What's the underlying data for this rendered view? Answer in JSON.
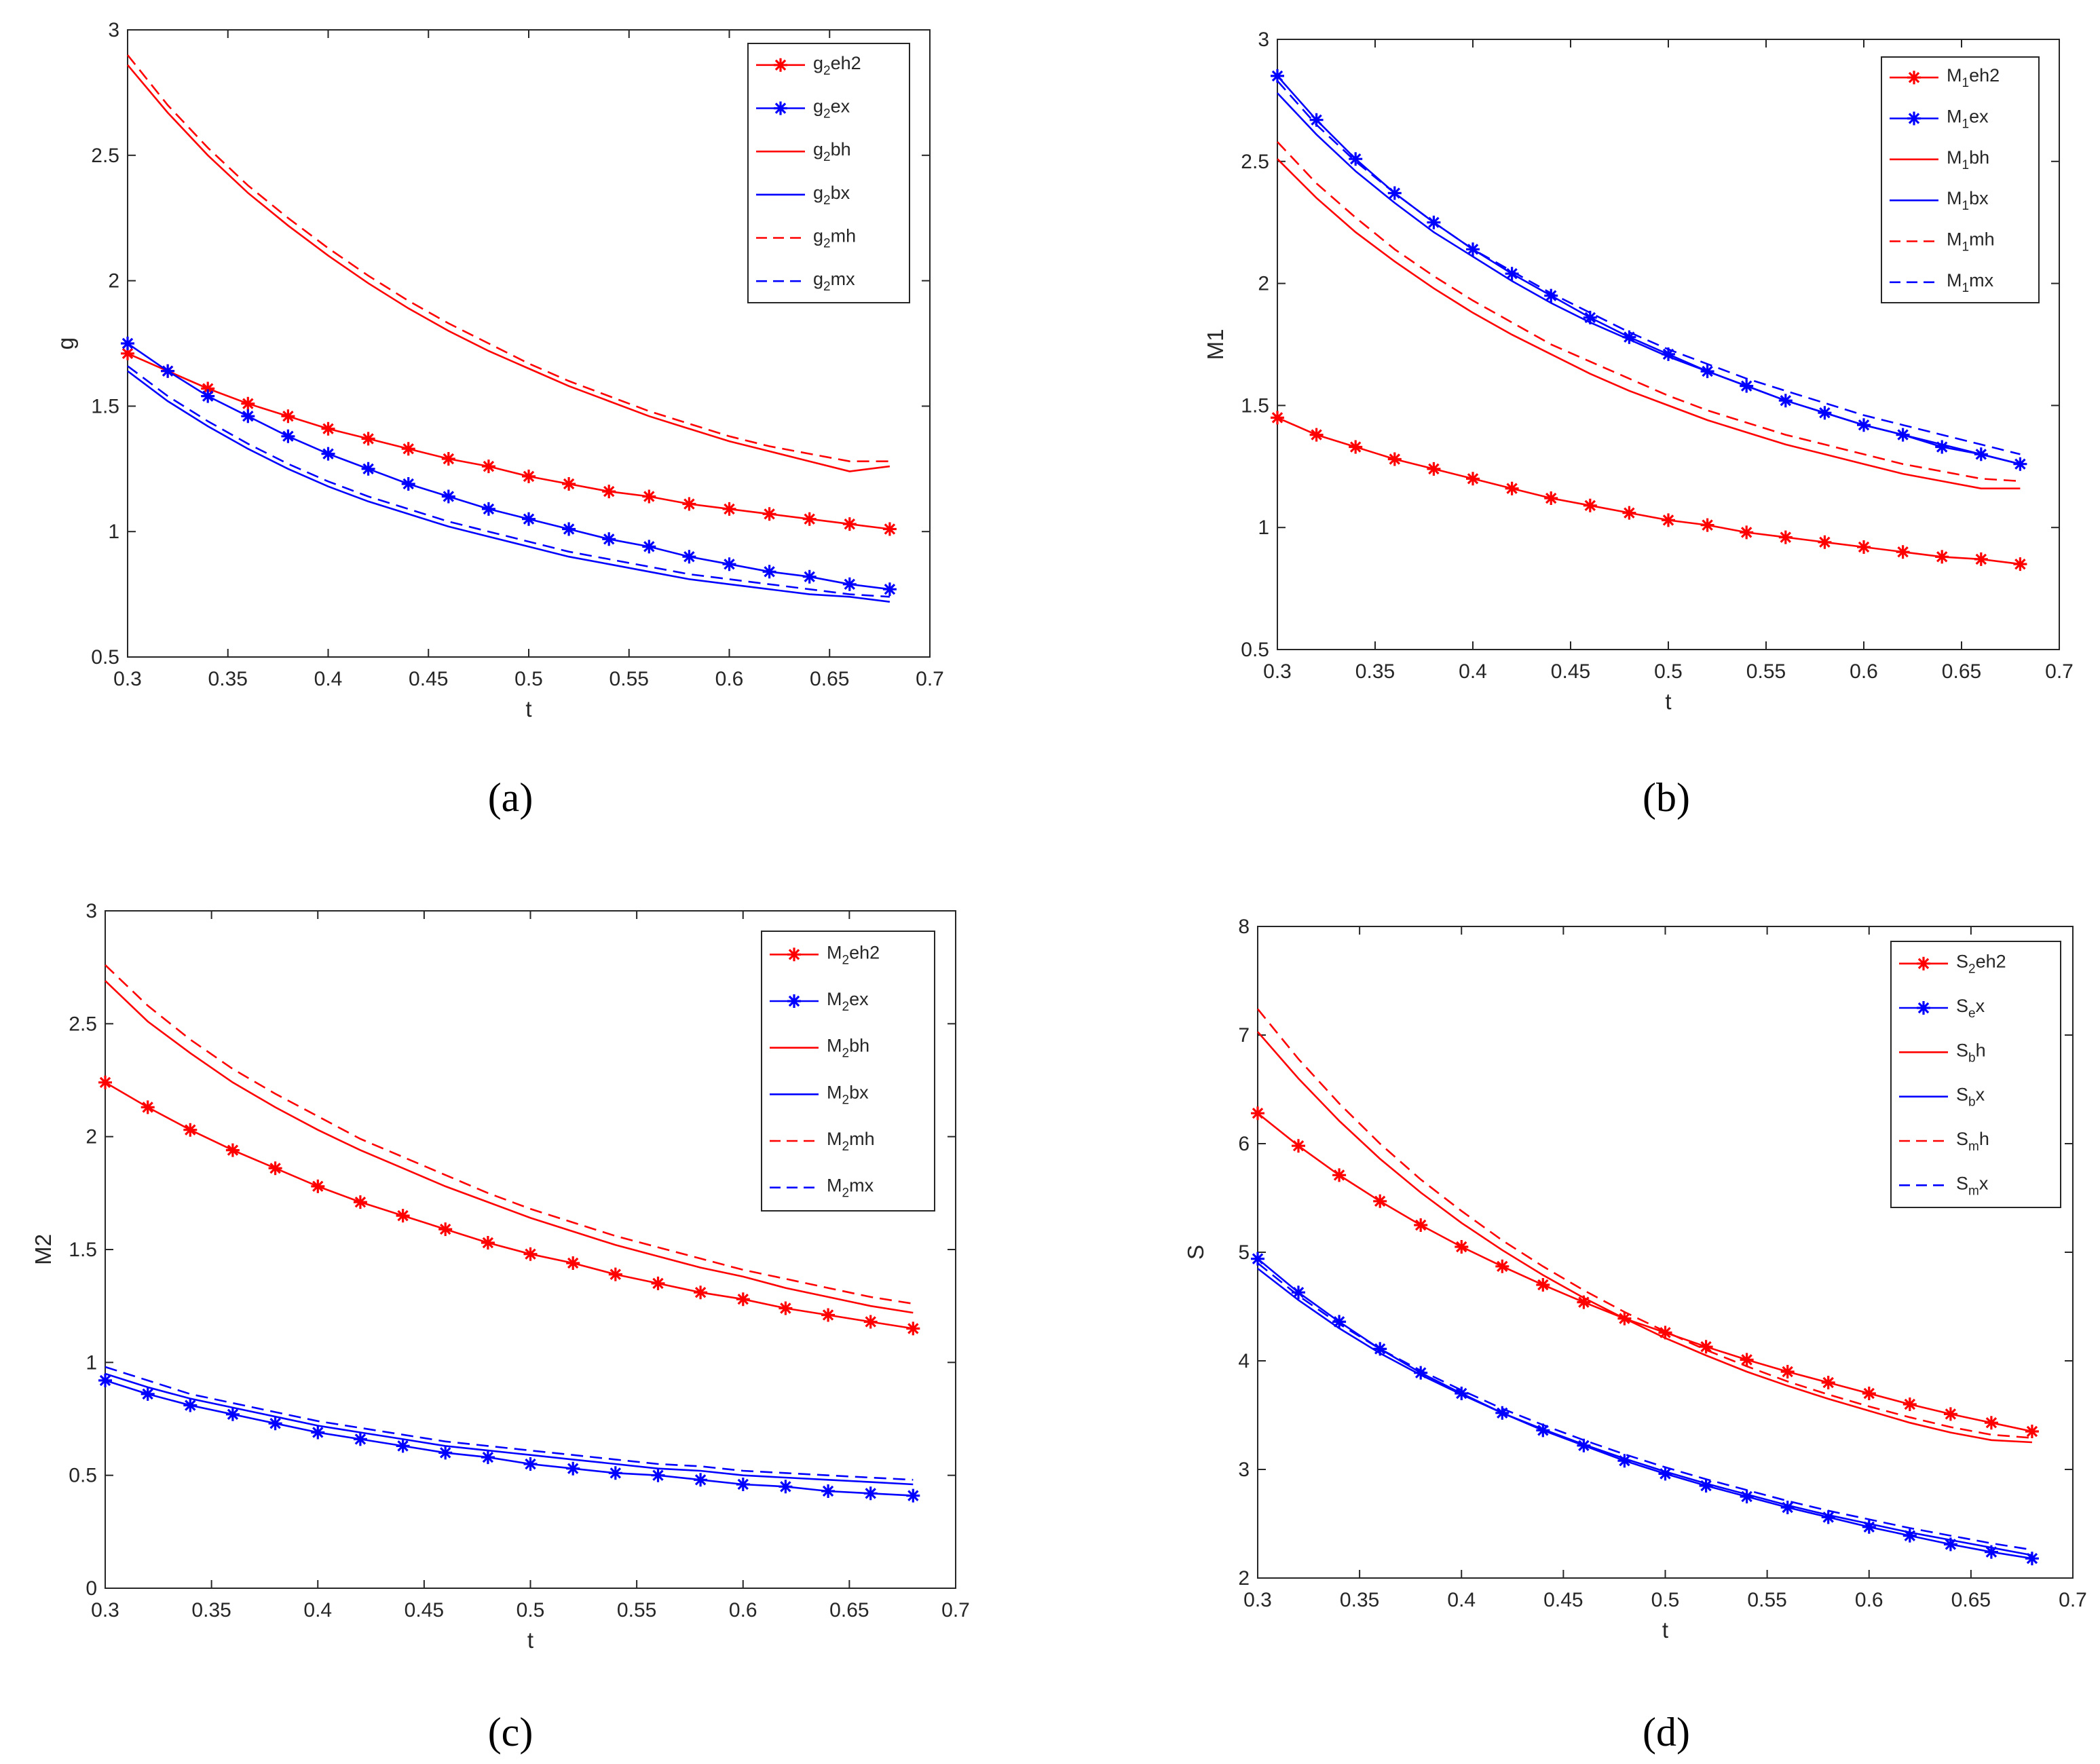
{
  "colors": {
    "red": "#ff0000",
    "blue": "#0000ff",
    "axis": "#262626"
  },
  "chart_data": [
    {
      "id": "a",
      "type": "line",
      "caption": "(a)",
      "xlabel": "t",
      "ylabel": "g",
      "xlim": [
        0.3,
        0.7
      ],
      "ylim": [
        0.5,
        3
      ],
      "xticks": [
        "0.3",
        "0.35",
        "0.4",
        "0.45",
        "0.5",
        "0.55",
        "0.6",
        "0.65",
        "0.7"
      ],
      "yticks": [
        "0.5",
        "1",
        "1.5",
        "2",
        "2.5",
        "3"
      ],
      "legend_position": "top-right",
      "series": [
        {
          "name": "g2eh2",
          "base": "g",
          "sub": "2",
          "tail": "eh2",
          "color": "red",
          "style": "solid-star",
          "y": [
            1.71,
            1.64,
            1.57,
            1.51,
            1.46,
            1.41,
            1.37,
            1.33,
            1.29,
            1.26,
            1.22,
            1.19,
            1.16,
            1.14,
            1.11,
            1.09,
            1.07,
            1.05,
            1.03,
            1.01
          ]
        },
        {
          "name": "g2ex",
          "base": "g",
          "sub": "2",
          "tail": "ex",
          "color": "blue",
          "style": "solid-star",
          "y": [
            1.75,
            1.64,
            1.54,
            1.46,
            1.38,
            1.31,
            1.25,
            1.19,
            1.14,
            1.09,
            1.05,
            1.01,
            0.97,
            0.94,
            0.9,
            0.87,
            0.84,
            0.82,
            0.79,
            0.77
          ]
        },
        {
          "name": "g2bh",
          "base": "g",
          "sub": "2",
          "tail": "bh",
          "color": "red",
          "style": "solid",
          "y": [
            2.86,
            2.67,
            2.5,
            2.35,
            2.22,
            2.1,
            1.99,
            1.89,
            1.8,
            1.72,
            1.65,
            1.58,
            1.52,
            1.46,
            1.41,
            1.36,
            1.32,
            1.28,
            1.24,
            1.26
          ]
        },
        {
          "name": "g2bx",
          "base": "g",
          "sub": "2",
          "tail": "bx",
          "color": "blue",
          "style": "solid",
          "y": [
            1.64,
            1.52,
            1.42,
            1.33,
            1.25,
            1.18,
            1.12,
            1.07,
            1.02,
            0.98,
            0.94,
            0.9,
            0.87,
            0.84,
            0.81,
            0.79,
            0.77,
            0.75,
            0.74,
            0.72
          ]
        },
        {
          "name": "g2mh",
          "base": "g",
          "sub": "2",
          "tail": "mh",
          "color": "red",
          "style": "dashed",
          "y": [
            2.9,
            2.7,
            2.53,
            2.38,
            2.25,
            2.13,
            2.02,
            1.92,
            1.83,
            1.75,
            1.67,
            1.6,
            1.54,
            1.48,
            1.43,
            1.38,
            1.34,
            1.31,
            1.28,
            1.28
          ]
        },
        {
          "name": "g2mx",
          "base": "g",
          "sub": "2",
          "tail": "mx",
          "color": "blue",
          "style": "dashed",
          "y": [
            1.66,
            1.54,
            1.44,
            1.35,
            1.27,
            1.2,
            1.14,
            1.09,
            1.04,
            1.0,
            0.96,
            0.92,
            0.89,
            0.86,
            0.83,
            0.81,
            0.79,
            0.77,
            0.75,
            0.74
          ]
        }
      ]
    },
    {
      "id": "b",
      "type": "line",
      "caption": "(b)",
      "xlabel": "t",
      "ylabel": "M1",
      "xlim": [
        0.3,
        0.7
      ],
      "ylim": [
        0.5,
        3
      ],
      "xticks": [
        "0.3",
        "0.35",
        "0.4",
        "0.45",
        "0.5",
        "0.55",
        "0.6",
        "0.65",
        "0.7"
      ],
      "yticks": [
        "0.5",
        "1",
        "1.5",
        "2",
        "2.5",
        "3"
      ],
      "legend_position": "top-right",
      "series": [
        {
          "name": "M1eh2",
          "base": "M",
          "sub": "1",
          "tail": "eh2",
          "color": "red",
          "style": "solid-star",
          "y": [
            1.45,
            1.38,
            1.33,
            1.28,
            1.24,
            1.2,
            1.16,
            1.12,
            1.09,
            1.06,
            1.03,
            1.01,
            0.98,
            0.96,
            0.94,
            0.92,
            0.9,
            0.88,
            0.87,
            0.85
          ]
        },
        {
          "name": "M1ex",
          "base": "M",
          "sub": "1",
          "tail": "ex",
          "color": "blue",
          "style": "solid-star",
          "y": [
            2.85,
            2.67,
            2.51,
            2.37,
            2.25,
            2.14,
            2.04,
            1.95,
            1.86,
            1.78,
            1.71,
            1.64,
            1.58,
            1.52,
            1.47,
            1.42,
            1.38,
            1.33,
            1.3,
            1.26
          ]
        },
        {
          "name": "M1bh",
          "base": "M",
          "sub": "1",
          "tail": "bh",
          "color": "red",
          "style": "solid",
          "y": [
            2.51,
            2.35,
            2.21,
            2.09,
            1.98,
            1.88,
            1.79,
            1.71,
            1.63,
            1.56,
            1.5,
            1.44,
            1.39,
            1.34,
            1.3,
            1.26,
            1.22,
            1.19,
            1.16,
            1.16
          ]
        },
        {
          "name": "M1bx",
          "base": "M",
          "sub": "1",
          "tail": "bx",
          "color": "blue",
          "style": "solid",
          "y": [
            2.78,
            2.61,
            2.46,
            2.33,
            2.21,
            2.11,
            2.01,
            1.92,
            1.84,
            1.77,
            1.7,
            1.64,
            1.58,
            1.52,
            1.47,
            1.42,
            1.38,
            1.34,
            1.3,
            1.26
          ]
        },
        {
          "name": "M1mh",
          "base": "M",
          "sub": "1",
          "tail": "mh",
          "color": "red",
          "style": "dashed",
          "y": [
            2.58,
            2.41,
            2.27,
            2.14,
            2.03,
            1.93,
            1.84,
            1.75,
            1.68,
            1.61,
            1.54,
            1.48,
            1.43,
            1.38,
            1.34,
            1.3,
            1.26,
            1.23,
            1.2,
            1.19
          ]
        },
        {
          "name": "M1mx",
          "base": "M",
          "sub": "1",
          "tail": "mx",
          "color": "blue",
          "style": "dashed",
          "y": [
            2.83,
            2.65,
            2.5,
            2.37,
            2.25,
            2.14,
            2.05,
            1.96,
            1.88,
            1.8,
            1.73,
            1.67,
            1.61,
            1.56,
            1.51,
            1.46,
            1.42,
            1.38,
            1.34,
            1.3
          ]
        }
      ]
    },
    {
      "id": "c",
      "type": "line",
      "caption": "(c)",
      "xlabel": "t",
      "ylabel": "M2",
      "xlim": [
        0.3,
        0.7
      ],
      "ylim": [
        0,
        3
      ],
      "xticks": [
        "0.3",
        "0.35",
        "0.4",
        "0.45",
        "0.5",
        "0.55",
        "0.6",
        "0.65",
        "0.7"
      ],
      "yticks": [
        "0",
        "0.5",
        "1",
        "1.5",
        "2",
        "2.5",
        "3"
      ],
      "legend_position": "top-right",
      "series": [
        {
          "name": "M2eh2",
          "base": "M",
          "sub": "2",
          "tail": "eh2",
          "color": "red",
          "style": "solid-star",
          "y": [
            2.24,
            2.13,
            2.03,
            1.94,
            1.86,
            1.78,
            1.71,
            1.65,
            1.59,
            1.53,
            1.48,
            1.44,
            1.39,
            1.35,
            1.31,
            1.28,
            1.24,
            1.21,
            1.18,
            1.15
          ]
        },
        {
          "name": "M2ex",
          "base": "M",
          "sub": "2",
          "tail": "ex",
          "color": "blue",
          "style": "solid-star",
          "y": [
            0.92,
            0.86,
            0.81,
            0.77,
            0.73,
            0.69,
            0.66,
            0.63,
            0.6,
            0.58,
            0.55,
            0.53,
            0.51,
            0.5,
            0.48,
            0.46,
            0.45,
            0.43,
            0.42,
            0.41
          ]
        },
        {
          "name": "M2bh",
          "base": "M",
          "sub": "2",
          "tail": "bh",
          "color": "red",
          "style": "solid",
          "y": [
            2.69,
            2.51,
            2.37,
            2.24,
            2.13,
            2.03,
            1.94,
            1.86,
            1.78,
            1.71,
            1.64,
            1.58,
            1.52,
            1.47,
            1.42,
            1.38,
            1.33,
            1.29,
            1.25,
            1.22
          ]
        },
        {
          "name": "M2bx",
          "base": "M",
          "sub": "2",
          "tail": "bx",
          "color": "blue",
          "style": "solid",
          "y": [
            0.95,
            0.89,
            0.84,
            0.8,
            0.76,
            0.72,
            0.69,
            0.66,
            0.63,
            0.61,
            0.59,
            0.57,
            0.55,
            0.53,
            0.52,
            0.5,
            0.49,
            0.48,
            0.47,
            0.46
          ]
        },
        {
          "name": "M2mh",
          "base": "M",
          "sub": "2",
          "tail": "mh",
          "color": "red",
          "style": "dashed",
          "y": [
            2.76,
            2.58,
            2.43,
            2.3,
            2.19,
            2.09,
            1.99,
            1.91,
            1.83,
            1.75,
            1.68,
            1.62,
            1.56,
            1.51,
            1.46,
            1.41,
            1.37,
            1.33,
            1.29,
            1.26
          ]
        },
        {
          "name": "M2mx",
          "base": "M",
          "sub": "2",
          "tail": "mx",
          "color": "blue",
          "style": "dashed",
          "y": [
            0.98,
            0.92,
            0.86,
            0.82,
            0.78,
            0.74,
            0.71,
            0.68,
            0.65,
            0.63,
            0.61,
            0.59,
            0.57,
            0.55,
            0.54,
            0.52,
            0.51,
            0.5,
            0.49,
            0.48
          ]
        }
      ]
    },
    {
      "id": "d",
      "type": "line",
      "caption": "(d)",
      "xlabel": "t",
      "ylabel": "S",
      "xlim": [
        0.3,
        0.7
      ],
      "ylim": [
        2,
        8
      ],
      "xticks": [
        "0.3",
        "0.35",
        "0.4",
        "0.45",
        "0.5",
        "0.55",
        "0.6",
        "0.65",
        "0.7"
      ],
      "yticks": [
        "2",
        "3",
        "4",
        "5",
        "6",
        "7",
        "8"
      ],
      "legend_position": "top-right",
      "series": [
        {
          "name": "S2eh2",
          "base": "S",
          "sub": "2",
          "tail": "eh2",
          "color": "red",
          "style": "solid-star",
          "y": [
            6.28,
            5.98,
            5.71,
            5.47,
            5.25,
            5.05,
            4.87,
            4.7,
            4.54,
            4.39,
            4.26,
            4.13,
            4.01,
            3.9,
            3.8,
            3.7,
            3.6,
            3.51,
            3.43,
            3.35
          ]
        },
        {
          "name": "Sex",
          "base": "S",
          "sub": "e",
          "tail": "x",
          "color": "blue",
          "style": "solid-star",
          "y": [
            4.94,
            4.63,
            4.36,
            4.11,
            3.89,
            3.7,
            3.52,
            3.36,
            3.22,
            3.08,
            2.96,
            2.85,
            2.75,
            2.65,
            2.56,
            2.47,
            2.39,
            2.31,
            2.24,
            2.18
          ]
        },
        {
          "name": "Sbh",
          "base": "S",
          "sub": "b",
          "tail": "h",
          "color": "red",
          "style": "solid",
          "y": [
            7.03,
            6.6,
            6.21,
            5.86,
            5.55,
            5.27,
            5.02,
            4.79,
            4.58,
            4.39,
            4.21,
            4.05,
            3.9,
            3.77,
            3.65,
            3.54,
            3.43,
            3.34,
            3.27,
            3.25
          ]
        },
        {
          "name": "Sbx",
          "base": "S",
          "sub": "b",
          "tail": "x",
          "color": "blue",
          "style": "solid",
          "y": [
            4.85,
            4.56,
            4.3,
            4.07,
            3.87,
            3.69,
            3.52,
            3.37,
            3.23,
            3.1,
            2.98,
            2.87,
            2.77,
            2.67,
            2.58,
            2.5,
            2.42,
            2.35,
            2.28,
            2.21
          ]
        },
        {
          "name": "Smh",
          "base": "S",
          "sub": "m",
          "tail": "h",
          "color": "red",
          "style": "dashed",
          "y": [
            7.24,
            6.78,
            6.37,
            6.0,
            5.67,
            5.38,
            5.11,
            4.87,
            4.65,
            4.45,
            4.27,
            4.1,
            3.95,
            3.81,
            3.69,
            3.58,
            3.48,
            3.39,
            3.32,
            3.29
          ]
        },
        {
          "name": "Smx",
          "base": "S",
          "sub": "m",
          "tail": "x",
          "color": "blue",
          "style": "dashed",
          "y": [
            4.9,
            4.6,
            4.34,
            4.11,
            3.91,
            3.73,
            3.56,
            3.41,
            3.27,
            3.14,
            3.02,
            2.91,
            2.81,
            2.71,
            2.62,
            2.54,
            2.46,
            2.39,
            2.32,
            2.26
          ]
        }
      ]
    }
  ]
}
